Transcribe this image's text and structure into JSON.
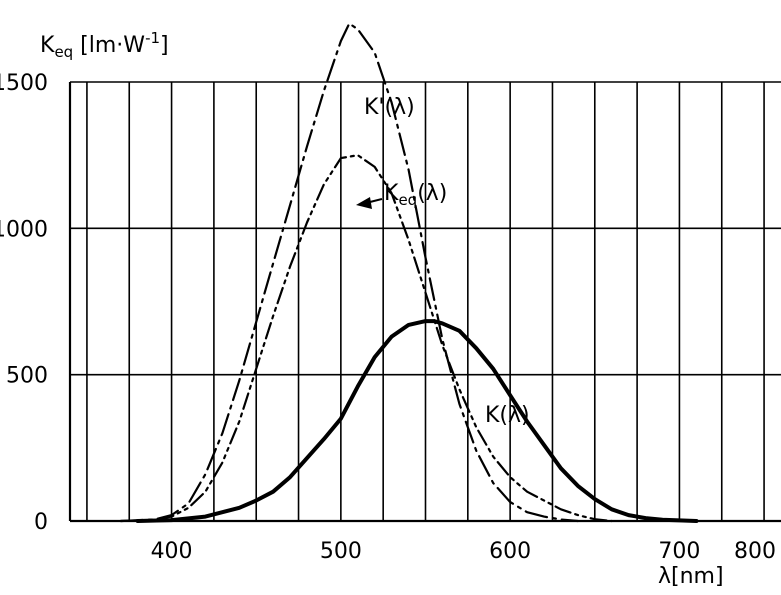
{
  "chart_data": {
    "type": "line",
    "ylabel": "K",
    "ylabel_sub": "eq",
    "ylabel_unit": " [lm·W",
    "ylabel_sup": "-1",
    "ylabel_end": "]",
    "xlabel": "λ[nm]",
    "xlim": [
      340,
      760
    ],
    "ylim": [
      0,
      1500
    ],
    "x_ticks": [
      400,
      500,
      600,
      700,
      800
    ],
    "y_ticks": [
      0,
      500,
      1000,
      1500
    ],
    "grid": true,
    "series": [
      {
        "name": "K(λ)",
        "style": "solid",
        "points": [
          [
            380,
            0
          ],
          [
            400,
            3
          ],
          [
            420,
            15
          ],
          [
            440,
            45
          ],
          [
            450,
            70
          ],
          [
            460,
            100
          ],
          [
            470,
            150
          ],
          [
            480,
            215
          ],
          [
            490,
            280
          ],
          [
            500,
            350
          ],
          [
            510,
            460
          ],
          [
            520,
            560
          ],
          [
            530,
            630
          ],
          [
            540,
            670
          ],
          [
            550,
            683
          ],
          [
            555,
            683
          ],
          [
            560,
            675
          ],
          [
            570,
            650
          ],
          [
            580,
            590
          ],
          [
            590,
            520
          ],
          [
            600,
            430
          ],
          [
            610,
            340
          ],
          [
            620,
            260
          ],
          [
            630,
            180
          ],
          [
            640,
            120
          ],
          [
            650,
            75
          ],
          [
            660,
            40
          ],
          [
            670,
            20
          ],
          [
            680,
            10
          ],
          [
            690,
            4
          ],
          [
            700,
            2
          ],
          [
            710,
            0
          ]
        ]
      },
      {
        "name": "K'(λ)",
        "label_main": "K'",
        "label_sub": "",
        "label_end": "(λ)",
        "style": "dashdot",
        "points": [
          [
            370,
            0
          ],
          [
            390,
            5
          ],
          [
            400,
            20
          ],
          [
            410,
            60
          ],
          [
            420,
            160
          ],
          [
            430,
            300
          ],
          [
            440,
            480
          ],
          [
            450,
            680
          ],
          [
            460,
            880
          ],
          [
            470,
            1080
          ],
          [
            480,
            1280
          ],
          [
            490,
            1470
          ],
          [
            500,
            1640
          ],
          [
            505,
            1700
          ],
          [
            510,
            1680
          ],
          [
            520,
            1600
          ],
          [
            530,
            1430
          ],
          [
            540,
            1200
          ],
          [
            550,
            900
          ],
          [
            560,
            620
          ],
          [
            570,
            400
          ],
          [
            580,
            240
          ],
          [
            590,
            130
          ],
          [
            600,
            65
          ],
          [
            610,
            30
          ],
          [
            620,
            15
          ],
          [
            630,
            5
          ],
          [
            640,
            0
          ]
        ]
      },
      {
        "name": "Keq(λ)",
        "label_main": "K",
        "label_sub": "eq",
        "label_end": "(λ)",
        "style": "dashdotdot",
        "points": [
          [
            370,
            0
          ],
          [
            390,
            4
          ],
          [
            400,
            15
          ],
          [
            410,
            45
          ],
          [
            420,
            100
          ],
          [
            430,
            200
          ],
          [
            440,
            340
          ],
          [
            450,
            520
          ],
          [
            460,
            700
          ],
          [
            470,
            870
          ],
          [
            480,
            1020
          ],
          [
            490,
            1150
          ],
          [
            500,
            1240
          ],
          [
            510,
            1250
          ],
          [
            520,
            1210
          ],
          [
            530,
            1120
          ],
          [
            540,
            960
          ],
          [
            550,
            780
          ],
          [
            560,
            600
          ],
          [
            570,
            450
          ],
          [
            580,
            320
          ],
          [
            590,
            220
          ],
          [
            600,
            150
          ],
          [
            610,
            100
          ],
          [
            620,
            70
          ],
          [
            630,
            40
          ],
          [
            640,
            20
          ],
          [
            650,
            6
          ],
          [
            660,
            0
          ]
        ]
      }
    ]
  }
}
